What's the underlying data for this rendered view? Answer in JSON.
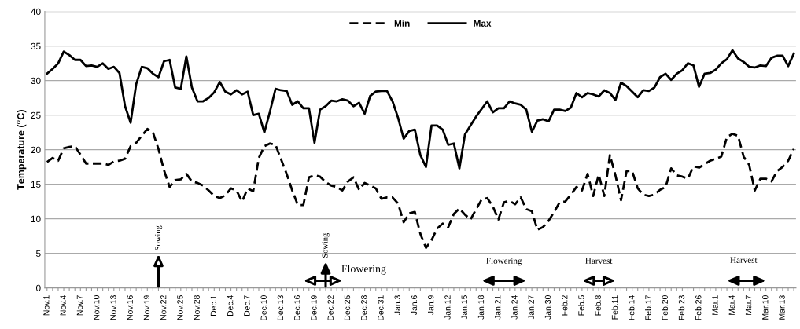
{
  "chart_data": {
    "type": "line",
    "ylabel": "Temperature ($^{o}$C)",
    "categories": [
      "Nov.1",
      null,
      null,
      "Nov.4",
      null,
      null,
      "Nov.7",
      null,
      null,
      "Nov.10",
      null,
      null,
      "Nov.13",
      null,
      null,
      "Nov.16",
      null,
      null,
      "Nov.19",
      null,
      null,
      "Nov.22",
      null,
      null,
      "Nov.25",
      null,
      null,
      "Nov.28",
      null,
      null,
      "Dec.1",
      null,
      null,
      "Dec.4",
      null,
      null,
      "Dec.7",
      null,
      null,
      "Dec.10",
      null,
      null,
      "Dec.13",
      null,
      null,
      "Dec.16",
      null,
      null,
      "Dec.19",
      null,
      null,
      "Dec.22",
      null,
      null,
      "Dec.25",
      null,
      null,
      "Dec.28",
      null,
      null,
      "Dec.31",
      null,
      null,
      "Jan.3",
      null,
      null,
      "Jan.6",
      null,
      null,
      "Jan.9",
      null,
      null,
      "Jan.12",
      null,
      null,
      "Jan.15",
      null,
      null,
      "Jan.18",
      null,
      null,
      "Jan.21",
      null,
      null,
      "Jan.24",
      null,
      null,
      "Jan.27",
      null,
      null,
      "Jan.30",
      null,
      null,
      "Feb.2",
      null,
      null,
      "Feb.5",
      null,
      null,
      "Feb.8",
      null,
      null,
      "Feb.11",
      null,
      null,
      "Feb.14",
      null,
      null,
      "Feb.17",
      null,
      null,
      "Feb.20",
      null,
      null,
      "Feb.23",
      null,
      null,
      "Feb.26",
      null,
      null,
      "Mar.1",
      null,
      null,
      "Mar.4",
      null,
      null,
      "Mar.7",
      null,
      null,
      "Mar.10",
      null,
      null,
      "Mar.13",
      null,
      null
    ],
    "series": [
      {
        "name": "Min",
        "color": "#000000",
        "line_style": "dashed",
        "values": [
          18.2,
          18.8,
          18.4,
          20.2,
          20.4,
          20.5,
          19.3,
          18.0,
          18.0,
          18.0,
          18.0,
          17.8,
          18.3,
          18.4,
          18.7,
          20.5,
          21.0,
          22.0,
          23.0,
          22.5,
          20.1,
          17.0,
          14.6,
          15.6,
          15.7,
          16.5,
          15.4,
          15.2,
          14.8,
          14.1,
          13.3,
          13.0,
          13.4,
          14.4,
          14.1,
          12.5,
          14.4,
          14.0,
          18.8,
          20.5,
          20.9,
          20.7,
          18.6,
          16.5,
          14.1,
          12.0,
          12.0,
          16.0,
          16.3,
          16.1,
          15.3,
          14.8,
          14.6,
          14.1,
          15.4,
          16.0,
          14.2,
          15.2,
          14.8,
          14.4,
          12.9,
          13.1,
          13.1,
          12.2,
          9.5,
          10.8,
          11.0,
          7.8,
          5.8,
          6.9,
          8.6,
          9.3,
          8.8,
          10.7,
          11.5,
          10.6,
          9.9,
          11.4,
          12.8,
          13.0,
          11.8,
          9.9,
          12.4,
          12.6,
          12.1,
          13.1,
          11.4,
          11.1,
          8.4,
          8.8,
          9.7,
          11.0,
          12.4,
          12.5,
          13.5,
          14.6,
          14.1,
          16.5,
          13.3,
          16.4,
          13.3,
          19.2,
          16.3,
          12.7,
          16.9,
          16.9,
          14.4,
          13.5,
          13.3,
          13.5,
          14.2,
          14.6,
          17.3,
          16.3,
          16.1,
          15.8,
          17.6,
          17.4,
          17.9,
          18.4,
          18.7,
          19.0,
          21.8,
          22.3,
          22.0,
          19.0,
          17.8,
          14.1,
          15.8,
          15.8,
          15.4,
          16.9,
          17.5,
          18.4,
          20.1
        ]
      },
      {
        "name": "Max",
        "color": "#000000",
        "line_style": "solid",
        "values": [
          31.0,
          31.7,
          32.5,
          34.2,
          33.7,
          33.0,
          33.0,
          32.1,
          32.2,
          32.0,
          32.5,
          31.7,
          32.0,
          31.1,
          26.3,
          23.9,
          29.5,
          32.0,
          31.8,
          31.0,
          30.5,
          32.8,
          33.0,
          29.0,
          28.8,
          33.5,
          29.0,
          27.0,
          27.0,
          27.5,
          28.3,
          29.8,
          28.4,
          28.0,
          28.6,
          28.0,
          28.4,
          25.0,
          25.2,
          22.5,
          25.5,
          28.8,
          28.6,
          28.5,
          26.5,
          27.0,
          26.0,
          26.0,
          21.0,
          25.8,
          26.3,
          27.1,
          27.0,
          27.3,
          27.1,
          26.3,
          26.8,
          25.2,
          27.8,
          28.4,
          28.5,
          28.5,
          27.0,
          24.6,
          21.6,
          22.7,
          22.9,
          19.2,
          17.5,
          23.5,
          23.5,
          22.9,
          20.7,
          20.9,
          17.3,
          22.2,
          23.5,
          24.8,
          25.9,
          27.0,
          25.4,
          26.0,
          26.0,
          27.0,
          26.7,
          26.5,
          25.8,
          22.6,
          24.2,
          24.4,
          24.1,
          25.8,
          25.8,
          25.6,
          26.1,
          28.2,
          27.6,
          28.2,
          28.0,
          27.7,
          28.6,
          28.2,
          27.2,
          29.7,
          29.2,
          28.4,
          27.6,
          28.6,
          28.5,
          29.0,
          30.5,
          31.0,
          30.1,
          31.0,
          31.5,
          32.5,
          32.2,
          29.1,
          31.0,
          31.1,
          31.6,
          32.5,
          33.1,
          34.4,
          33.2,
          32.7,
          32.0,
          31.9,
          32.2,
          32.1,
          33.3,
          33.6,
          33.6,
          32.1,
          33.9
        ]
      }
    ],
    "ylim": [
      0,
      40
    ],
    "yticks": [
      0,
      5,
      10,
      15,
      20,
      25,
      30,
      35,
      40
    ],
    "grid": "y",
    "legend": "top",
    "annotations": [
      "Sowing",
      "Sowing",
      "Flowering",
      "Flowering",
      "Harvest",
      "Harvest"
    ]
  }
}
